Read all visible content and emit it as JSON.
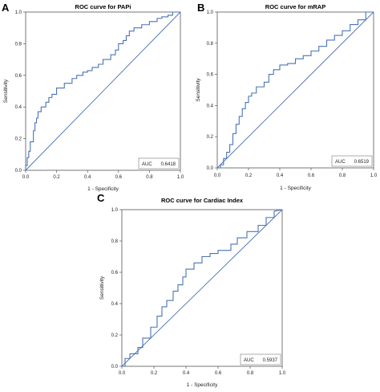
{
  "panels": [
    {
      "letter": "A",
      "auc_label": "AUC",
      "auc_value": "0.6418"
    },
    {
      "letter": "B",
      "auc_label": "AUC",
      "auc_value": "0.6519"
    },
    {
      "letter": "C",
      "auc_label": "AUC",
      "auc_value": "0.5937"
    }
  ],
  "chart_data": [
    {
      "type": "line",
      "title": "ROC curve for PAPi",
      "xlabel": "1 - Specificity",
      "ylabel": "Sensitivity",
      "xlim": [
        0,
        1
      ],
      "ylim": [
        0,
        1
      ],
      "xticks": [
        "0.0",
        "0.2",
        "0.4",
        "0.6",
        "0.8",
        "1.0"
      ],
      "yticks": [
        "0.0",
        "0.2",
        "0.4",
        "0.6",
        "0.8",
        "1.0"
      ],
      "grid": false,
      "annotations": [
        "AUC 0.6418"
      ],
      "series": [
        {
          "color": "#4a74b5",
          "x": [
            0,
            0,
            0.01,
            0.01,
            0.02,
            0.02,
            0.03,
            0.03,
            0.05,
            0.05,
            0.06,
            0.06,
            0.07,
            0.07,
            0.08,
            0.08,
            0.1,
            0.1,
            0.13,
            0.13,
            0.15,
            0.15,
            0.17,
            0.17,
            0.2,
            0.2,
            0.25,
            0.25,
            0.3,
            0.3,
            0.33,
            0.33,
            0.37,
            0.37,
            0.4,
            0.4,
            0.43,
            0.43,
            0.47,
            0.47,
            0.5,
            0.5,
            0.55,
            0.55,
            0.58,
            0.58,
            0.6,
            0.6,
            0.63,
            0.63,
            0.65,
            0.65,
            0.67,
            0.67,
            0.7,
            0.7,
            0.75,
            0.75,
            0.8,
            0.8,
            0.85,
            0.85,
            0.88,
            0.88,
            0.92,
            0.92,
            0.95,
            0.95,
            1.0
          ],
          "y": [
            0,
            0.03,
            0.03,
            0.08,
            0.08,
            0.12,
            0.12,
            0.18,
            0.18,
            0.25,
            0.25,
            0.3,
            0.3,
            0.33,
            0.33,
            0.37,
            0.37,
            0.4,
            0.4,
            0.43,
            0.43,
            0.46,
            0.46,
            0.48,
            0.48,
            0.52,
            0.52,
            0.55,
            0.55,
            0.58,
            0.58,
            0.6,
            0.6,
            0.62,
            0.62,
            0.63,
            0.63,
            0.65,
            0.65,
            0.67,
            0.67,
            0.7,
            0.7,
            0.73,
            0.73,
            0.76,
            0.76,
            0.8,
            0.8,
            0.82,
            0.82,
            0.85,
            0.85,
            0.88,
            0.88,
            0.9,
            0.9,
            0.92,
            0.92,
            0.94,
            0.94,
            0.96,
            0.96,
            0.97,
            0.97,
            0.98,
            0.98,
            1.0,
            1.0
          ]
        },
        {
          "color": "#4a74b5",
          "x": [
            0,
            1
          ],
          "y": [
            0,
            1
          ]
        }
      ]
    },
    {
      "type": "line",
      "title": "ROC curve for mRAP",
      "xlabel": "1 - Specificity",
      "ylabel": "Sensitivity",
      "xlim": [
        0,
        1
      ],
      "ylim": [
        0,
        1
      ],
      "xticks": [
        "0.0",
        "0.2",
        "0.4",
        "0.6",
        "0.8",
        "1.0"
      ],
      "yticks": [
        "0.0",
        "0.2",
        "0.4",
        "0.6",
        "0.8",
        "1.0"
      ],
      "grid": false,
      "annotations": [
        "AUC 0.6519"
      ],
      "series": [
        {
          "color": "#4a74b5",
          "x": [
            0,
            0.02,
            0.02,
            0.04,
            0.04,
            0.06,
            0.06,
            0.08,
            0.08,
            0.1,
            0.1,
            0.12,
            0.12,
            0.14,
            0.14,
            0.16,
            0.16,
            0.18,
            0.18,
            0.2,
            0.2,
            0.22,
            0.22,
            0.25,
            0.25,
            0.3,
            0.3,
            0.33,
            0.33,
            0.36,
            0.36,
            0.4,
            0.4,
            0.45,
            0.45,
            0.5,
            0.5,
            0.55,
            0.55,
            0.6,
            0.6,
            0.65,
            0.65,
            0.7,
            0.7,
            0.75,
            0.75,
            0.8,
            0.8,
            0.85,
            0.85,
            0.9,
            0.9,
            0.95,
            0.95,
            1.0
          ],
          "y": [
            0,
            0,
            0.02,
            0.02,
            0.06,
            0.06,
            0.1,
            0.1,
            0.15,
            0.15,
            0.22,
            0.22,
            0.28,
            0.28,
            0.33,
            0.33,
            0.38,
            0.38,
            0.42,
            0.42,
            0.46,
            0.46,
            0.48,
            0.48,
            0.52,
            0.52,
            0.55,
            0.55,
            0.6,
            0.6,
            0.63,
            0.63,
            0.66,
            0.66,
            0.67,
            0.67,
            0.7,
            0.7,
            0.72,
            0.72,
            0.75,
            0.75,
            0.78,
            0.78,
            0.82,
            0.82,
            0.85,
            0.85,
            0.88,
            0.88,
            0.92,
            0.92,
            0.95,
            0.95,
            1.0,
            1.0
          ]
        },
        {
          "color": "#4a74b5",
          "x": [
            0,
            1
          ],
          "y": [
            0,
            1
          ]
        }
      ]
    },
    {
      "type": "line",
      "title": "ROC curve for Cardiac Index",
      "xlabel": "1 - Specificity",
      "ylabel": "Sensitivity",
      "xlim": [
        0,
        1
      ],
      "ylim": [
        0,
        1
      ],
      "xticks": [
        "0.0",
        "0.2",
        "0.4",
        "0.6",
        "0.8",
        "1.0"
      ],
      "yticks": [
        "0.0",
        "0.2",
        "0.4",
        "0.6",
        "0.8",
        "1.0"
      ],
      "grid": false,
      "annotations": [
        "AUC 0.5937"
      ],
      "series": [
        {
          "color": "#4a74b5",
          "x": [
            0,
            0.02,
            0.02,
            0.05,
            0.05,
            0.1,
            0.1,
            0.13,
            0.13,
            0.18,
            0.18,
            0.22,
            0.22,
            0.25,
            0.25,
            0.28,
            0.28,
            0.32,
            0.32,
            0.35,
            0.35,
            0.38,
            0.38,
            0.4,
            0.4,
            0.45,
            0.45,
            0.5,
            0.5,
            0.55,
            0.55,
            0.6,
            0.6,
            0.68,
            0.68,
            0.72,
            0.72,
            0.78,
            0.78,
            0.85,
            0.85,
            0.9,
            0.9,
            0.95,
            0.95,
            1.0
          ],
          "y": [
            0,
            0,
            0.05,
            0.05,
            0.08,
            0.08,
            0.12,
            0.12,
            0.18,
            0.18,
            0.25,
            0.25,
            0.32,
            0.32,
            0.38,
            0.38,
            0.42,
            0.42,
            0.48,
            0.48,
            0.52,
            0.52,
            0.57,
            0.57,
            0.62,
            0.62,
            0.66,
            0.66,
            0.7,
            0.7,
            0.72,
            0.72,
            0.74,
            0.74,
            0.78,
            0.78,
            0.82,
            0.82,
            0.86,
            0.86,
            0.9,
            0.9,
            0.95,
            0.95,
            0.99,
            1.0
          ]
        },
        {
          "color": "#4a74b5",
          "x": [
            0,
            1
          ],
          "y": [
            0,
            1
          ]
        }
      ]
    }
  ]
}
